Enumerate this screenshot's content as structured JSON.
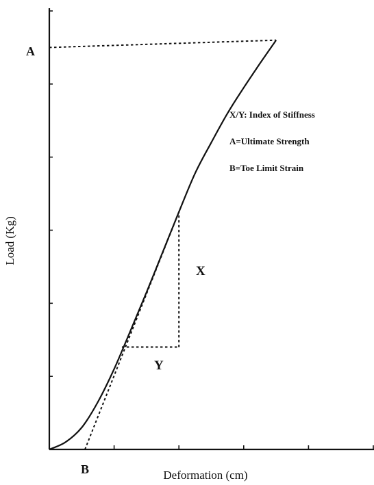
{
  "chart_data": {
    "type": "line",
    "xlabel": "Deformation (cm)",
    "ylabel": "Load (Kg)",
    "xlim": [
      0,
      5
    ],
    "ylim": [
      0,
      6
    ],
    "x_ticks": [
      0,
      1,
      2,
      3,
      4,
      5
    ],
    "y_ticks": [
      0,
      1,
      2,
      3,
      4,
      5,
      6
    ],
    "grid": false,
    "series": [
      {
        "x": [
          0.0,
          0.25,
          0.5,
          0.75,
          1.0,
          1.25,
          1.5,
          1.75,
          2.0,
          2.25,
          2.5,
          2.75,
          3.0,
          3.25,
          3.5
        ],
        "y": [
          0.0,
          0.1,
          0.3,
          0.65,
          1.1,
          1.62,
          2.15,
          2.7,
          3.25,
          3.78,
          4.2,
          4.6,
          4.95,
          5.28,
          5.6
        ]
      }
    ],
    "tangent_line": {
      "x": [
        0.55,
        2.0
      ],
      "y": [
        0.0,
        3.25
      ]
    },
    "stiffness_triangle": {
      "x_start": 1.12,
      "x_end": 2.0,
      "y_low": 1.4,
      "y_high": 3.25
    },
    "ultimate_level": {
      "x_start": 0.0,
      "x_end": 3.5,
      "y_start": 5.5,
      "y_end": 5.6
    },
    "annotations": {
      "a_marker": "A",
      "b_marker": "B",
      "x_marker": "X",
      "y_marker": "Y"
    },
    "legend_text": [
      "X/Y: Index of Stiffness",
      "A=Ultimate Strength",
      "B=Toe Limit Strain"
    ]
  }
}
